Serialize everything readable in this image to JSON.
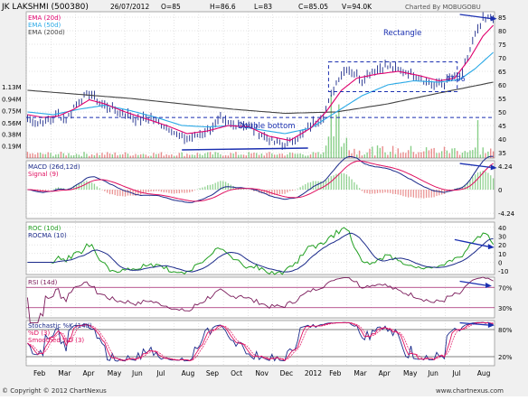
{
  "header": {
    "symbol": "JK LAKSHMI (500380)",
    "date": "26/07/2012",
    "open": "O=85",
    "high": "H=86.6",
    "low": "L=83",
    "close": "C=85.05",
    "volume": "V=94.0K",
    "charted_by": "Charted By MOBUGOBU"
  },
  "footer": {
    "copyright": "© Copyright © 2012 ChartNexus",
    "site": "www.chartnexus.com"
  },
  "colors": {
    "ema20": "#e0006e",
    "ema50": "#2aa9e6",
    "ema200": "#444444",
    "price": "#1b2a8a",
    "annotation": "#1a2fb0",
    "volume_up": "#2aa82a",
    "volume_down": "#d83030",
    "volume_neutral": "#c0c0c0",
    "macd": "#1b2a8a",
    "signal": "#e01060",
    "roc": "#22a022",
    "rocma": "#1b2a8a",
    "rsi": "#7a1a5a",
    "k": "#1b2a8a",
    "d": "#e01060",
    "panel_bg": "#ffffff",
    "grid": "#c8c8c8"
  },
  "chart_data": [
    {
      "type": "line",
      "panel": "price",
      "legend": [
        "EMA (20d)",
        "EMA (50d)",
        "EMA (200d)"
      ],
      "y_ticks": [
        "85",
        "80",
        "75",
        "70",
        "65",
        "60",
        "55",
        "50",
        "45",
        "40",
        "35"
      ],
      "ylim": [
        33,
        87
      ],
      "volume_ticks": [
        "1.13M",
        "0.94M",
        "0.75M",
        "0.56M",
        "0.38M",
        "0.19M"
      ],
      "volume_max": 1.13,
      "x_labels": [
        "Feb",
        "Mar",
        "Apr",
        "May",
        "Jun",
        "Jul",
        "Aug",
        "Sep",
        "Oct",
        "Nov",
        "Dec",
        "2012",
        "Feb",
        "Mar",
        "Apr",
        "May",
        "Jun",
        "Jul",
        "Aug"
      ],
      "annotations": {
        "double_bottom": "Double bottom",
        "rectangle": "Rectangle",
        "support_value": "47.96"
      },
      "support_level": 47.96,
      "rectangle_range": [
        57.5,
        68.5
      ],
      "double_bottom_level": 37,
      "price_keypoints": [
        [
          0,
          48
        ],
        [
          4,
          46
        ],
        [
          8,
          47
        ],
        [
          12,
          49
        ],
        [
          15,
          47
        ],
        [
          18,
          52
        ],
        [
          21,
          55
        ],
        [
          24,
          57
        ],
        [
          27,
          54
        ],
        [
          31,
          52
        ],
        [
          35,
          50
        ],
        [
          39,
          49
        ],
        [
          43,
          47
        ],
        [
          47,
          48
        ],
        [
          51,
          46
        ],
        [
          55,
          44
        ],
        [
          59,
          41
        ],
        [
          63,
          40
        ],
        [
          67,
          42
        ],
        [
          71,
          44
        ],
        [
          75,
          47
        ],
        [
          79,
          45
        ],
        [
          83,
          46
        ],
        [
          87,
          44
        ],
        [
          91,
          42
        ],
        [
          95,
          39
        ],
        [
          99,
          38
        ],
        [
          103,
          39
        ],
        [
          107,
          42
        ],
        [
          111,
          46
        ],
        [
          115,
          49
        ],
        [
          118,
          56
        ],
        [
          121,
          63
        ],
        [
          124,
          66
        ],
        [
          127,
          64
        ],
        [
          130,
          62
        ],
        [
          134,
          65
        ],
        [
          138,
          67
        ],
        [
          142,
          66
        ],
        [
          146,
          65
        ],
        [
          150,
          64
        ],
        [
          154,
          62
        ],
        [
          158,
          60
        ],
        [
          162,
          61
        ],
        [
          166,
          63
        ],
        [
          169,
          64
        ],
        [
          171,
          70
        ],
        [
          173,
          76
        ],
        [
          175,
          80
        ],
        [
          177,
          84
        ],
        [
          179,
          84.5
        ],
        [
          181,
          85
        ]
      ],
      "ema20_keypoints": [
        [
          0,
          49
        ],
        [
          6,
          48
        ],
        [
          12,
          48.5
        ],
        [
          18,
          51
        ],
        [
          24,
          54.5
        ],
        [
          30,
          53
        ],
        [
          38,
          50
        ],
        [
          46,
          47.5
        ],
        [
          54,
          45
        ],
        [
          62,
          42
        ],
        [
          70,
          43
        ],
        [
          78,
          45
        ],
        [
          86,
          44.5
        ],
        [
          94,
          41
        ],
        [
          102,
          39.5
        ],
        [
          110,
          44
        ],
        [
          116,
          50
        ],
        [
          122,
          58
        ],
        [
          128,
          62.5
        ],
        [
          136,
          64
        ],
        [
          144,
          65
        ],
        [
          152,
          63.5
        ],
        [
          160,
          61.5
        ],
        [
          166,
          62.5
        ],
        [
          172,
          70
        ],
        [
          177,
          78
        ],
        [
          181,
          82
        ]
      ],
      "ema50_keypoints": [
        [
          0,
          50
        ],
        [
          10,
          49
        ],
        [
          20,
          51
        ],
        [
          30,
          52.5
        ],
        [
          40,
          50.5
        ],
        [
          50,
          48
        ],
        [
          60,
          45
        ],
        [
          70,
          44.5
        ],
        [
          80,
          45
        ],
        [
          90,
          43.5
        ],
        [
          100,
          42
        ],
        [
          110,
          44
        ],
        [
          120,
          50
        ],
        [
          130,
          56
        ],
        [
          140,
          60
        ],
        [
          150,
          61.5
        ],
        [
          160,
          61
        ],
        [
          168,
          62
        ],
        [
          174,
          66
        ],
        [
          181,
          72
        ]
      ],
      "ema200_keypoints": [
        [
          0,
          58
        ],
        [
          20,
          56.5
        ],
        [
          40,
          55
        ],
        [
          60,
          53
        ],
        [
          80,
          51
        ],
        [
          100,
          49.5
        ],
        [
          120,
          50
        ],
        [
          140,
          53
        ],
        [
          160,
          57
        ],
        [
          181,
          61
        ]
      ]
    },
    {
      "type": "line",
      "panel": "macd",
      "legend": [
        "MACD (26d,12d)",
        "Signal (9)"
      ],
      "y_ticks": [
        "4.24",
        "0",
        "-4.24"
      ],
      "ylim": [
        -5.2,
        5.2
      ]
    },
    {
      "type": "line",
      "panel": "roc",
      "legend": [
        "ROC (10d)",
        "ROCMA (10)"
      ],
      "y_ticks": [
        "40",
        "30",
        "20",
        "10",
        "0",
        "-10"
      ],
      "ylim": [
        -14,
        46
      ]
    },
    {
      "type": "line",
      "panel": "rsi",
      "legend": [
        "RSI (14d)"
      ],
      "y_ticks": [
        "70%",
        "30%"
      ],
      "ylim": [
        10,
        90
      ]
    },
    {
      "type": "line",
      "panel": "stochastic",
      "legend": [
        "Stochastic %K (14d)",
        "%D (3)",
        "Smoothed %D (3)"
      ],
      "y_ticks": [
        "80%",
        "20%"
      ],
      "ylim": [
        0,
        100
      ]
    }
  ]
}
